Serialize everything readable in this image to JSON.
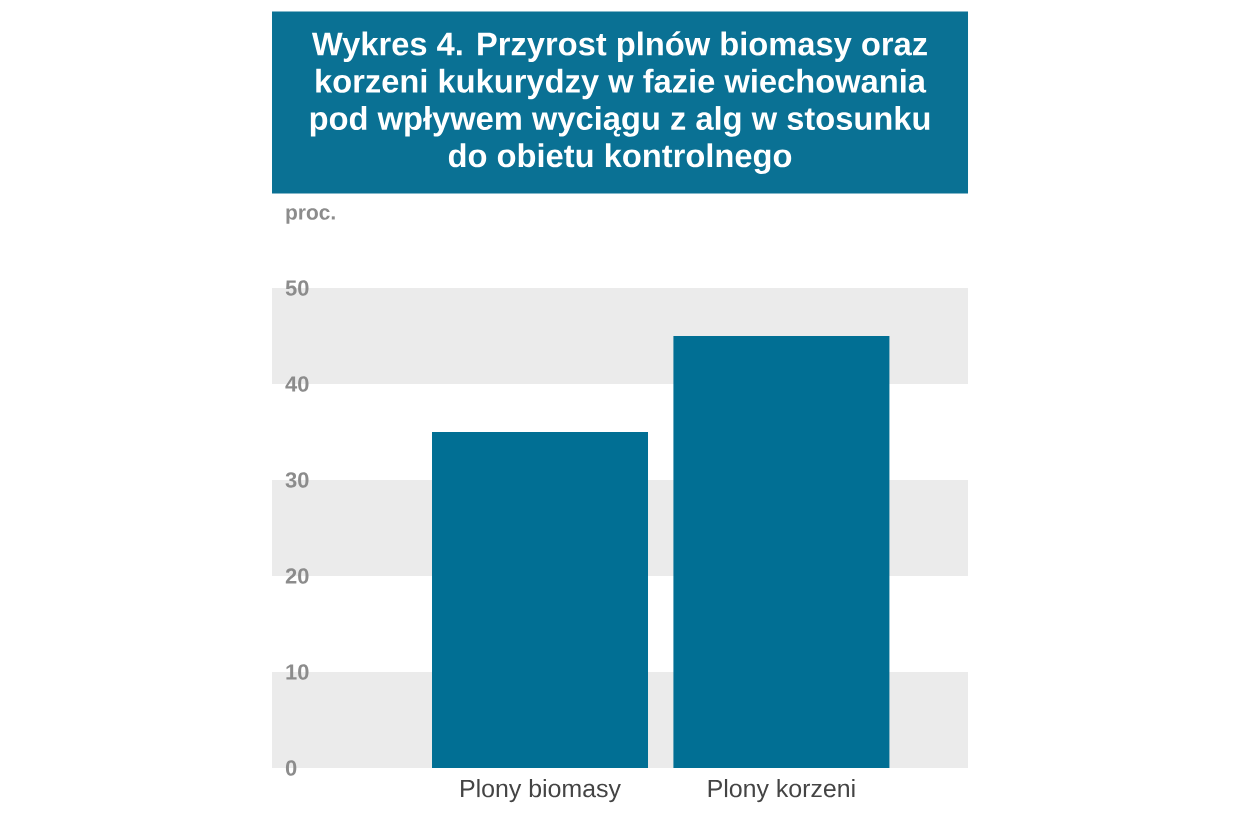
{
  "chart_data": {
    "type": "bar",
    "title": "Wykres 4. Przyrost plnów biomasy oraz korzeni kukurydzy w fazie wiechowania pod wpływem wyciągu z alg w stosunku do obietu kontrolnego",
    "ylabel": "proc.",
    "categories": [
      "Plony biomasy",
      "Plony korzeni"
    ],
    "values": [
      35,
      45
    ],
    "color": "#016f94",
    "ylim": [
      0,
      50
    ],
    "yticks": [
      0,
      10,
      20,
      30,
      40,
      50
    ],
    "bands": [
      {
        "axis": "y",
        "from": 0,
        "to": 10,
        "color": "#ebebeb"
      },
      {
        "axis": "y",
        "from": 20,
        "to": 30,
        "color": "#ebebeb"
      },
      {
        "axis": "y",
        "from": 40,
        "to": 50,
        "color": "#ebebeb"
      }
    ]
  }
}
